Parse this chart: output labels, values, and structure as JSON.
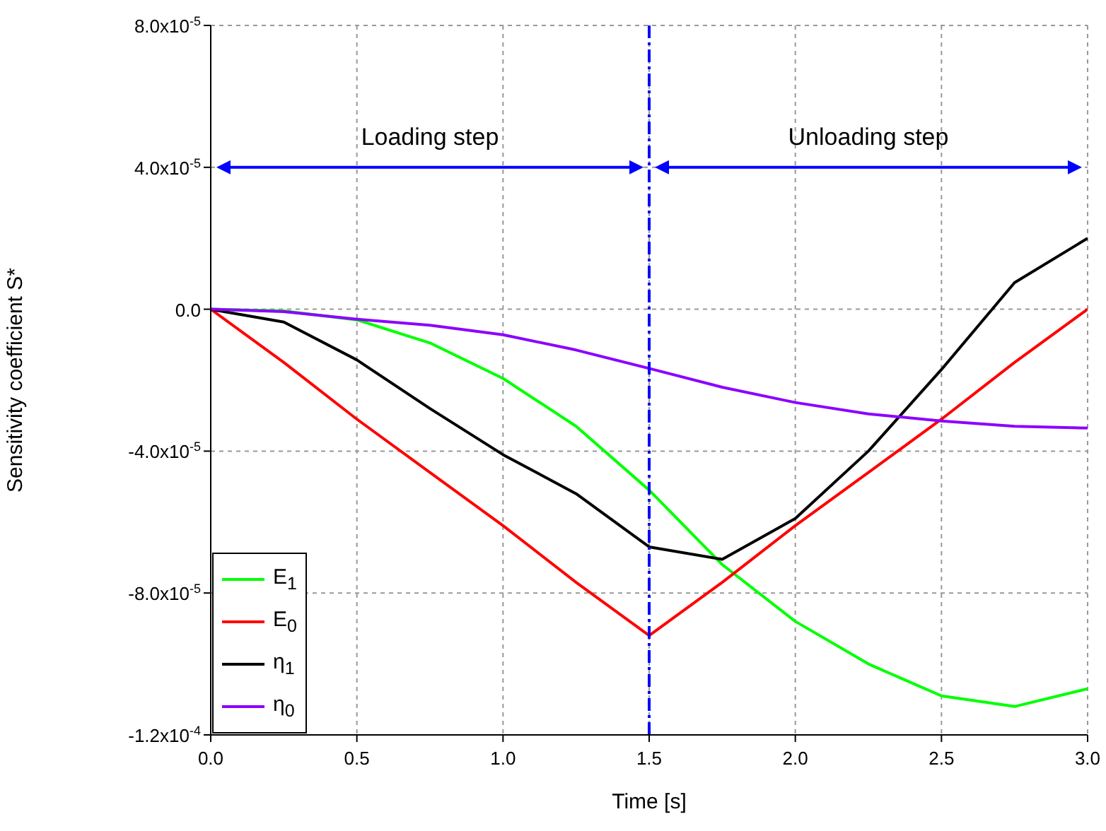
{
  "chart_data": {
    "type": "line",
    "xlabel": "Time [s]",
    "ylabel": "Sensitivity coefficient S*",
    "x": [
      0,
      0.25,
      0.5,
      0.75,
      1.0,
      1.25,
      1.5,
      1.75,
      2.0,
      2.25,
      2.5,
      2.75,
      3.0
    ],
    "series": [
      {
        "name": "E$_{1}$",
        "color": "#00ff00",
        "values": [
          0,
          -5e-07,
          -3e-06,
          -9.5e-06,
          -1.95e-05,
          -3.3e-05,
          -5.1e-05,
          -7.2e-05,
          -8.8e-05,
          -0.0001,
          -0.000109,
          -0.000112,
          -0.000107
        ]
      },
      {
        "name": "E$_{0}$",
        "color": "#ff0000",
        "values": [
          0,
          -1.5e-05,
          -3.1e-05,
          -4.6e-05,
          -6.1e-05,
          -7.7e-05,
          -9.2e-05,
          -7.7e-05,
          -6.1e-05,
          -4.6e-05,
          -3.1e-05,
          -1.5e-05,
          0
        ]
      },
      {
        "name": "η$_{1}$",
        "color": "#000000",
        "values": [
          0,
          -3.6e-06,
          -1.43e-05,
          -2.8e-05,
          -4.1e-05,
          -5.2e-05,
          -6.7e-05,
          -7.05e-05,
          -5.9e-05,
          -4e-05,
          -1.7e-05,
          7.5e-06,
          2e-05
        ]
      },
      {
        "name": "η$_{0}$",
        "color": "#8b00ff",
        "values": [
          0,
          -7e-07,
          -2.8e-06,
          -4.5e-06,
          -7.2e-06,
          -1.15e-05,
          -1.67e-05,
          -2.2e-05,
          -2.63e-05,
          -2.95e-05,
          -3.15e-05,
          -3.3e-05,
          -3.35e-05
        ]
      }
    ],
    "xlim": [
      0,
      3.0
    ],
    "xticks": [
      {
        "value": 0,
        "label": "0.0"
      },
      0.5,
      {
        "value": 1,
        "label": "1.0"
      },
      1.5,
      {
        "value": 2,
        "label": "2.0"
      },
      2.5,
      {
        "value": 3,
        "label": "3.0"
      }
    ],
    "ylim": [
      -0.00012,
      8e-05
    ],
    "yticks": [
      {
        "value": -0.00012,
        "label": "-1.2x10$^{-4}$"
      },
      {
        "value": -8e-05,
        "label": "-8.0x10$^{-5}$"
      },
      {
        "value": -4e-05,
        "label": "-4.0x10$^{-5}$"
      },
      {
        "value": 0,
        "label": "0.0"
      },
      {
        "value": 4e-05,
        "label": "4.0x10$^{-5}$"
      },
      {
        "value": 8e-05,
        "label": "8.0x10$^{-5}$"
      }
    ],
    "ref_lines": [
      {
        "axis": "x",
        "value": 1.5,
        "color": "#0000ff",
        "line_style": "dashed"
      }
    ],
    "annotations": [
      "Loading step",
      "Unloading step"
    ],
    "grid": true,
    "legend": "bottom left",
    "marker": "none"
  }
}
